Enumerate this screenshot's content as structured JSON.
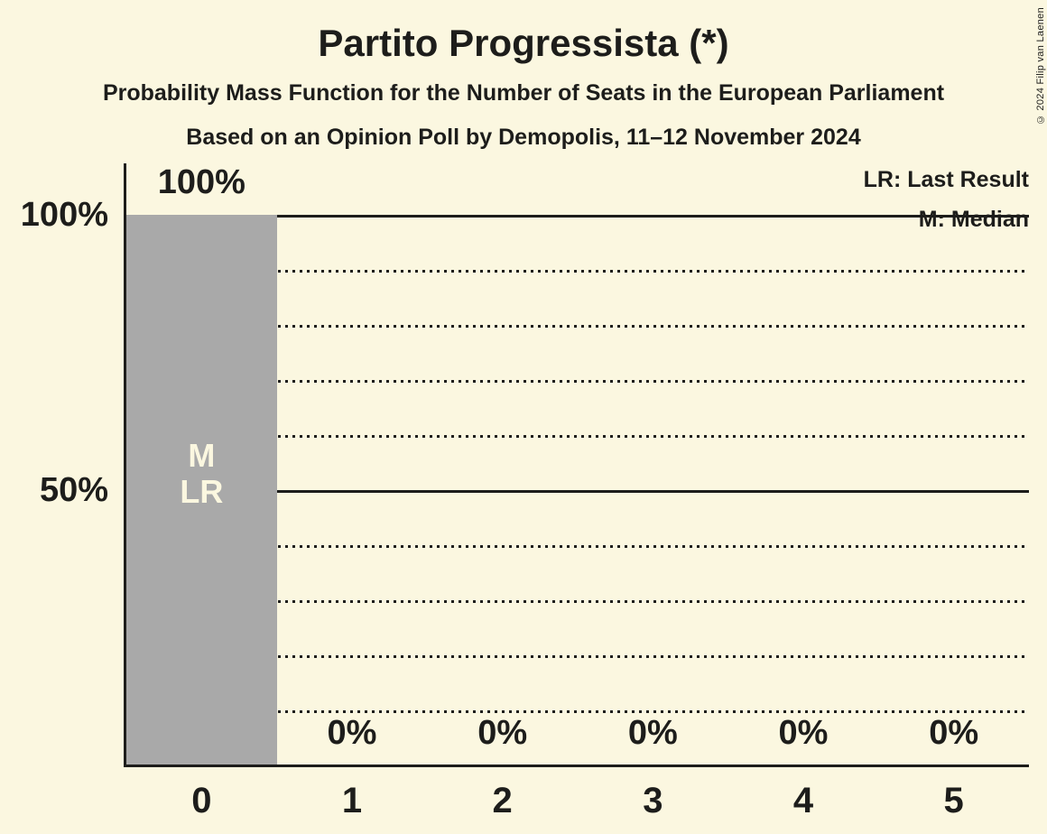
{
  "copyright": "© 2024 Filip van Laenen",
  "chart_data": {
    "type": "bar",
    "title": "Partito Progressista (*)",
    "subtitle": "Probability Mass Function for the Number of Seats in the European Parliament",
    "subtitle2": "Based on an Opinion Poll by Demopolis, 11–12 November 2024",
    "xlabel": "",
    "ylabel": "",
    "ylim": [
      0,
      100
    ],
    "grid": "horizontal",
    "legend_position": "top-right",
    "categories": [
      "0",
      "1",
      "2",
      "3",
      "4",
      "5"
    ],
    "values": [
      100,
      0,
      0,
      0,
      0,
      0
    ],
    "value_labels": [
      "100%",
      "0%",
      "0%",
      "0%",
      "0%",
      "0%"
    ],
    "bar_annotations": [
      [
        "M",
        "LR"
      ],
      [],
      [],
      [],
      [],
      []
    ],
    "median_seats": "0",
    "last_result_seats": "0",
    "y_axis": {
      "solid_lines": [
        {
          "value": 100,
          "label": "100%"
        },
        {
          "value": 50,
          "label": "50%"
        }
      ],
      "dotted_lines": [
        90,
        80,
        70,
        60,
        40,
        30,
        20,
        10
      ]
    },
    "legend": [
      {
        "text": "LR: Last Result"
      },
      {
        "text": "M: Median"
      }
    ],
    "colors": {
      "background": "#FBF7E0",
      "bar": "#A9A9A9",
      "text": "#1D1D1B",
      "bar_annotation_text": "#FBF7E0"
    }
  }
}
